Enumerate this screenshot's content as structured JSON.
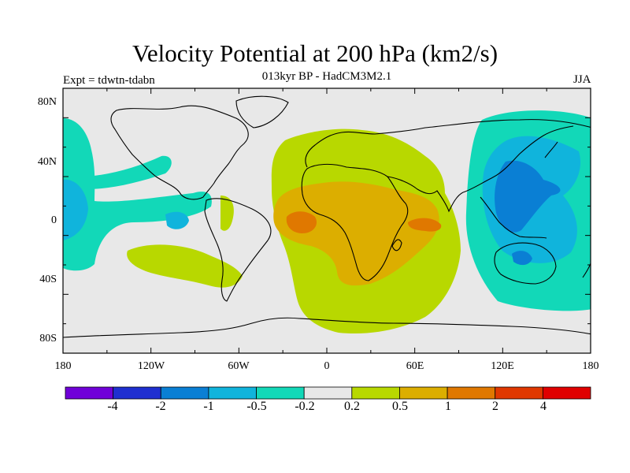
{
  "title": "Velocity Potential at 200 hPa (km2/s)",
  "subtitle": "013kyr BP - HadCM3M2.1",
  "experiment_label": "Expt = tdwtn-tdabn",
  "season": "JJA",
  "axes": {
    "lat_labels": [
      "80N",
      "40N",
      "0",
      "40S",
      "80S"
    ],
    "lon_labels": [
      "180",
      "120W",
      "60W",
      "0",
      "60E",
      "120E",
      "180"
    ]
  },
  "colorbar": {
    "levels": [
      "-4",
      "-2",
      "-1",
      "-0.5",
      "-0.2",
      "0.2",
      "0.5",
      "1",
      "2",
      "4"
    ],
    "colors": [
      "#7000d8",
      "#1f2fd0",
      "#0a7fd4",
      "#10b4dc",
      "#12d8b8",
      "#e8e8e8",
      "#b8d800",
      "#dcae00",
      "#e07800",
      "#e03800",
      "#e00000"
    ]
  },
  "map_colors": {
    "ocean_background": "#e8e8e8",
    "coastline": "#000000"
  }
}
